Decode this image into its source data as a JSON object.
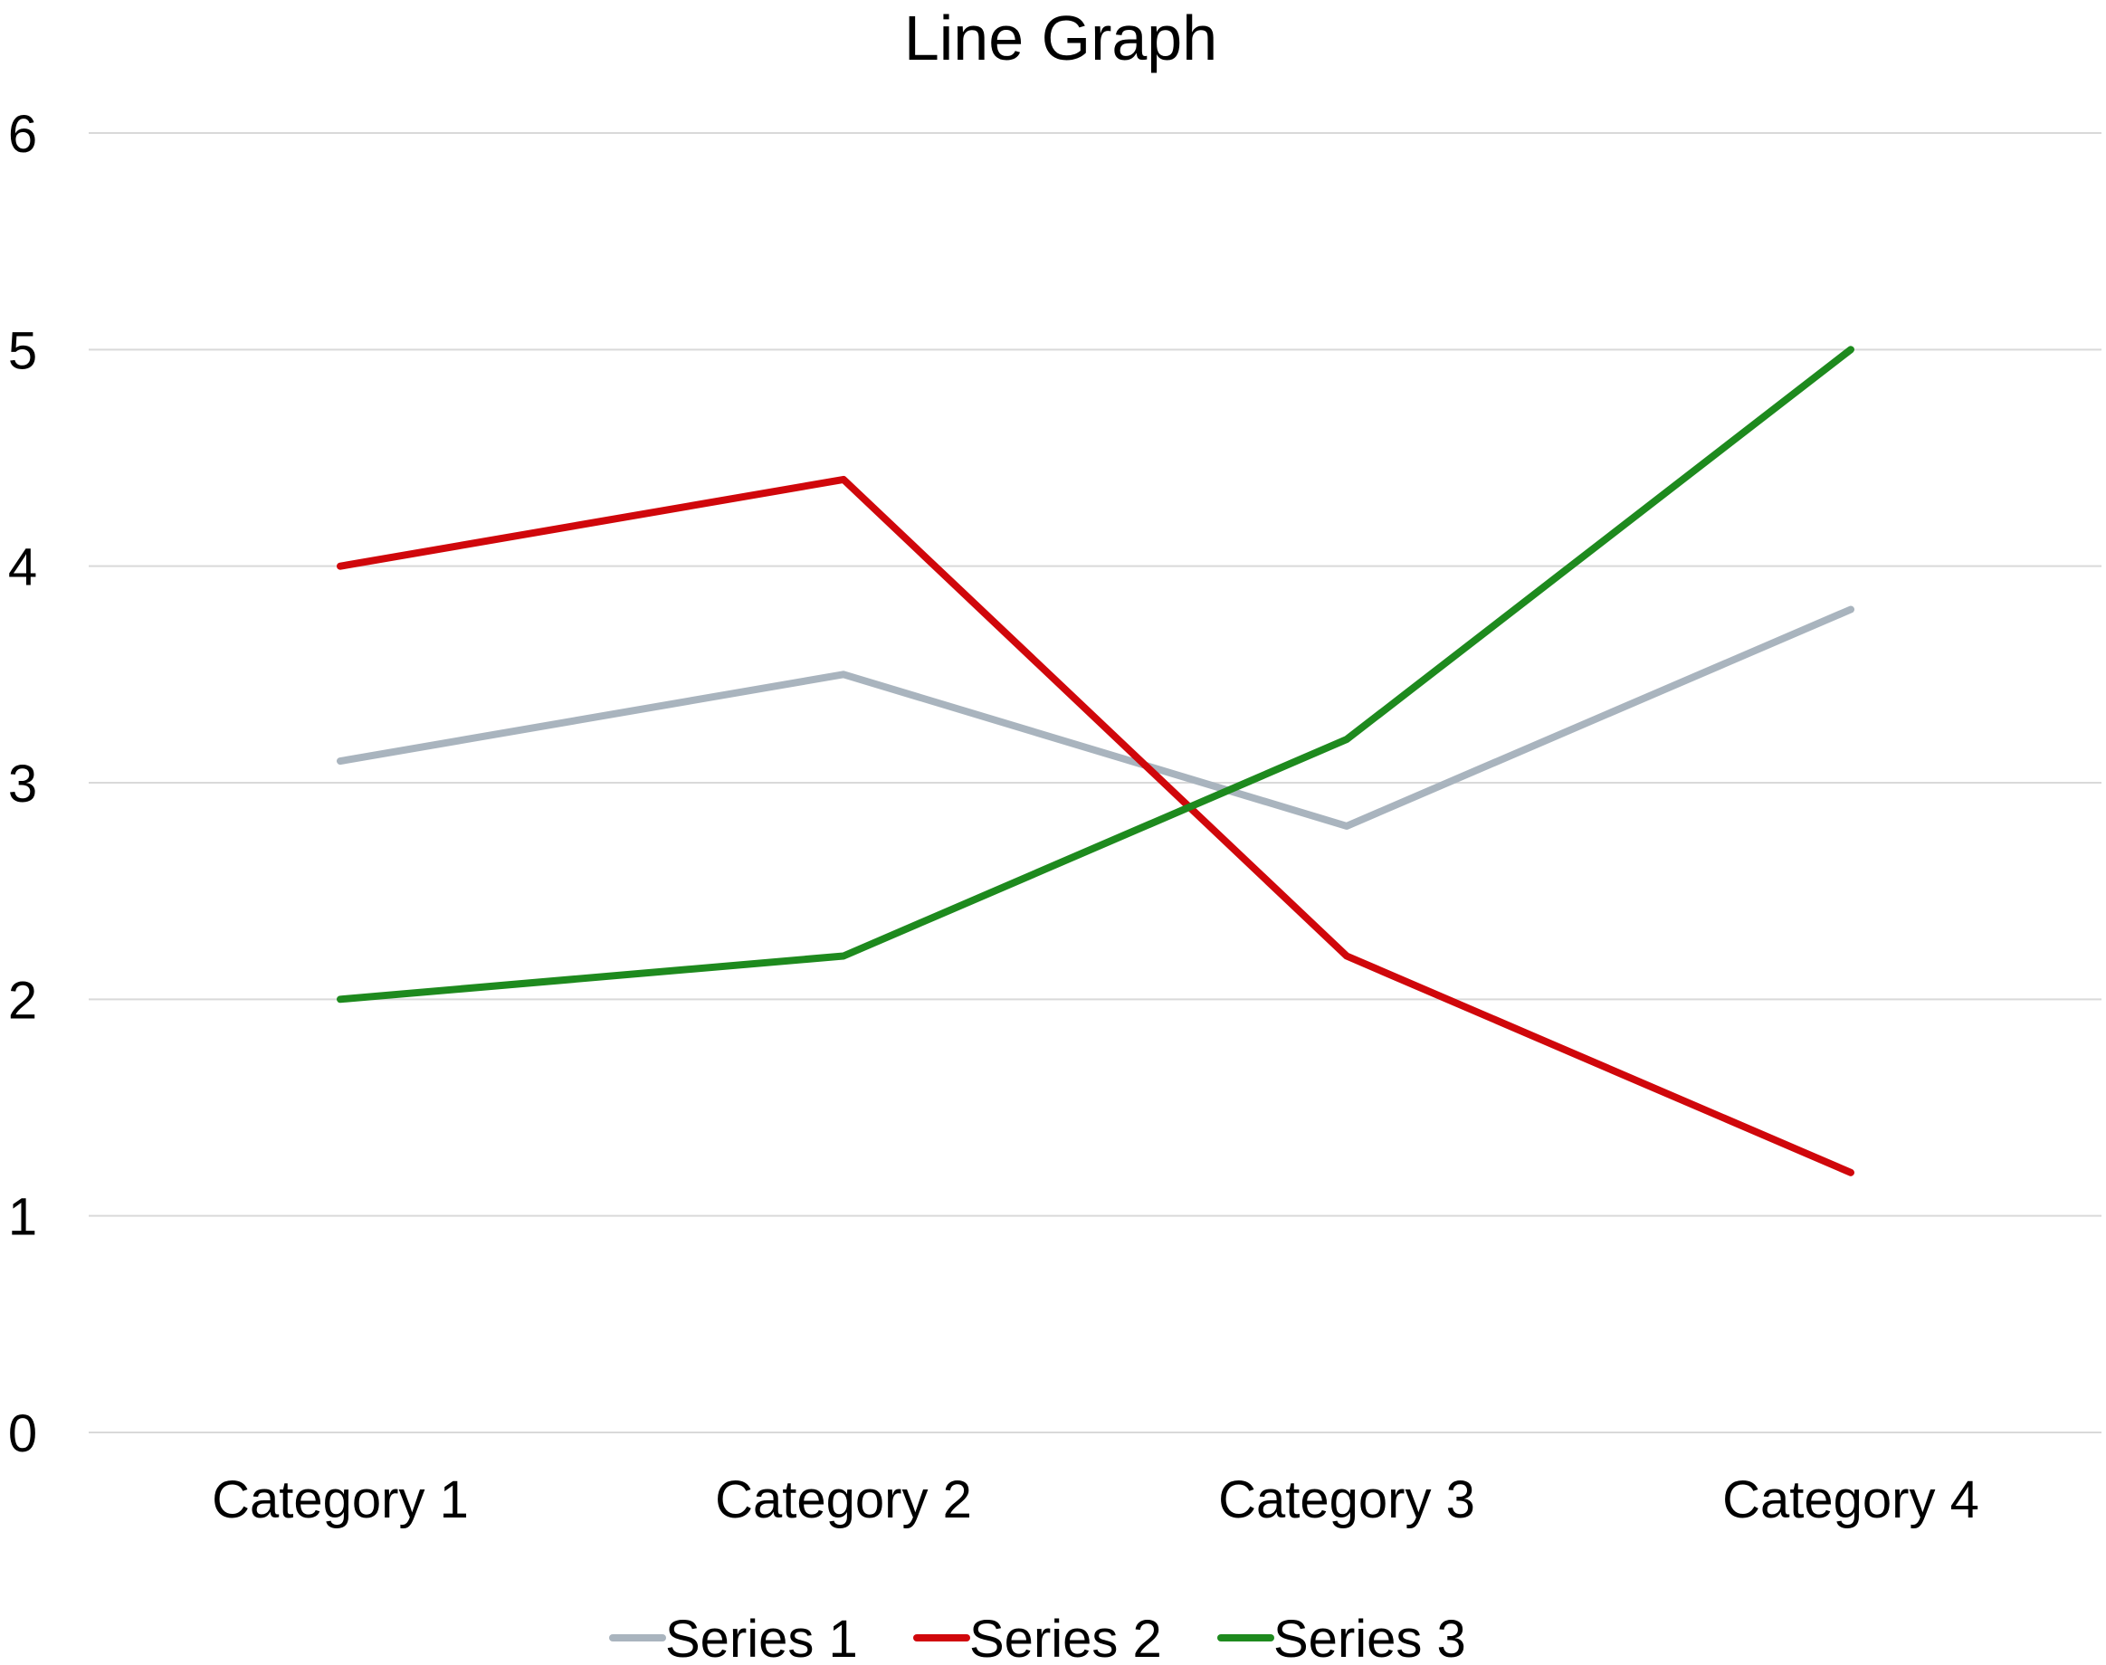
{
  "chart_data": {
    "type": "line",
    "title": "Line Graph",
    "xlabel": "",
    "ylabel": "",
    "categories": [
      "Category 1",
      "Category 2",
      "Category 3",
      "Category 4"
    ],
    "ylim": [
      0,
      6
    ],
    "yticks": [
      "0",
      "1",
      "2",
      "3",
      "4",
      "5",
      "6"
    ],
    "grid": true,
    "legend_position": "bottom",
    "series": [
      {
        "name": "Series 1",
        "color": "#a9b4be",
        "values": [
          3.1,
          3.5,
          2.8,
          3.8
        ]
      },
      {
        "name": "Series 2",
        "color": "#d0070b",
        "values": [
          4.0,
          4.4,
          2.2,
          1.2
        ]
      },
      {
        "name": "Series 3",
        "color": "#1e8a1e",
        "values": [
          2.0,
          2.2,
          3.2,
          5.0
        ]
      }
    ]
  }
}
